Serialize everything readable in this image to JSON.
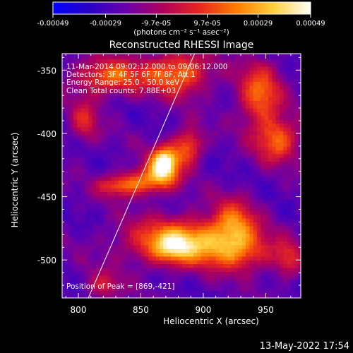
{
  "chart_data": {
    "type": "heatmap",
    "title": "Reconstructed RHESSI Image",
    "xlabel": "Heliocentric X (arcsec)",
    "ylabel": "Heliocentric Y (arcsec)",
    "xlim": [
      787,
      978
    ],
    "ylim": [
      -530,
      -337
    ],
    "x_ticks": [
      800,
      850,
      900,
      950
    ],
    "y_ticks": [
      -350,
      -400,
      -450,
      -500
    ],
    "colorbar": {
      "ticks": [
        "-0.00049",
        "-0.00029",
        "-9.7e-05",
        "9.7e-05",
        "0.00029",
        "0.00049"
      ],
      "unit": "(photons cm⁻² s⁻¹ asec⁻²)",
      "range": [
        -0.00049,
        0.00049
      ],
      "colormap": [
        "#0000ff",
        "#2a00c8",
        "#6a00a8",
        "#b0005a",
        "#e8281e",
        "#ff7d00",
        "#ffd040",
        "#ffffff"
      ]
    },
    "annotations": [
      "11-Mar-2014 09:02:12.000 to 09:06:12.000",
      "Detectors: 3F 4F 5F 6F 7F 8F, Att 1",
      "Energy Range: 25.0 - 50.0 keV",
      "Clean     Total counts: 7.88E+03"
    ],
    "peak_label": "Position of Peak = [869,-421]",
    "peak": [
      869,
      -421
    ],
    "limb_line": [
      [
        808,
        -530
      ],
      [
        893,
        -337
      ]
    ],
    "sources": [
      {
        "x": 869,
        "y": -423,
        "sx": 8,
        "sy": 9,
        "amp": 1.0
      },
      {
        "x": 857,
        "y": -437,
        "sx": 14,
        "sy": 8,
        "amp": 0.55
      },
      {
        "x": 832,
        "y": -441,
        "sx": 12,
        "sy": 6,
        "amp": 0.45
      },
      {
        "x": 888,
        "y": -410,
        "sx": 8,
        "sy": 10,
        "amp": 0.55
      },
      {
        "x": 888,
        "y": -485,
        "sx": 34,
        "sy": 13,
        "amp": 0.72
      },
      {
        "x": 875,
        "y": -490,
        "sx": 12,
        "sy": 8,
        "amp": 0.35
      },
      {
        "x": 925,
        "y": -470,
        "sx": 12,
        "sy": 14,
        "amp": 0.45
      },
      {
        "x": 930,
        "y": -495,
        "sx": 18,
        "sy": 10,
        "amp": 0.35
      },
      {
        "x": 825,
        "y": -355,
        "sx": 20,
        "sy": 10,
        "amp": 0.55
      },
      {
        "x": 880,
        "y": -352,
        "sx": 18,
        "sy": 12,
        "amp": 0.6
      },
      {
        "x": 945,
        "y": -370,
        "sx": 12,
        "sy": 18,
        "amp": 0.55
      },
      {
        "x": 960,
        "y": -405,
        "sx": 12,
        "sy": 12,
        "amp": 0.55
      },
      {
        "x": 805,
        "y": -390,
        "sx": 8,
        "sy": 12,
        "amp": 0.35
      },
      {
        "x": 820,
        "y": -520,
        "sx": 10,
        "sy": 8,
        "amp": 0.3
      },
      {
        "x": 968,
        "y": -500,
        "sx": 8,
        "sy": 10,
        "amp": 0.35
      }
    ]
  },
  "footer": {
    "date": "13-May-2022 17:54"
  }
}
